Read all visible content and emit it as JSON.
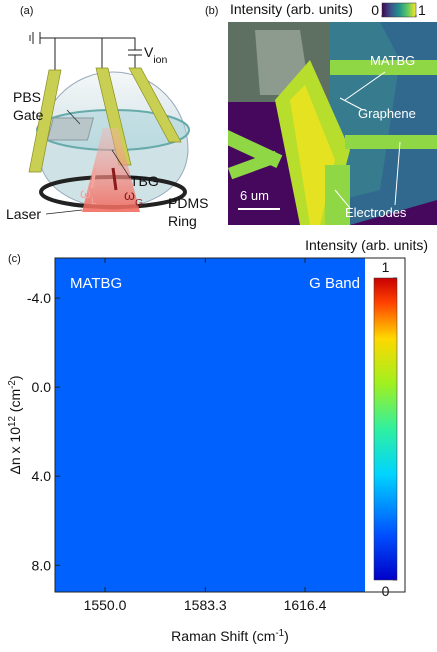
{
  "panel_a": {
    "label": "(a)",
    "voltage": {
      "symbol": "V",
      "subscript": "ion"
    },
    "pbs": "PBS",
    "gate": "Gate",
    "tbg": "TBG",
    "omega_l": {
      "symbol": "ω",
      "subscript": "L"
    },
    "omega_g": {
      "symbol": "ω",
      "subscript": "G"
    },
    "laser": "Laser",
    "pdms": "PDMS",
    "ring": "Ring"
  },
  "panel_b": {
    "label": "(b)",
    "colorbar_title": "Intensity (arb. units)",
    "colorbar_ticks": [
      0,
      1
    ],
    "matbg": "MATBG",
    "graphene": "Graphene",
    "electrodes": "Electrodes",
    "scale_bar": "6 um"
  },
  "chart_data": {
    "type": "contour",
    "panel_label": "(c)",
    "colorbar_title": "Intensity (arb. units)",
    "zlim": [
      0,
      1
    ],
    "zticks": [
      0,
      1
    ],
    "annotations": [
      "MATBG",
      "G Band"
    ],
    "xlabel_parts": [
      "Raman Shift (cm",
      "-1",
      ")"
    ],
    "ylabel_parts": [
      "Δn x 10",
      "12",
      " (cm",
      "-2",
      ")"
    ],
    "xlim": [
      1533.4,
      1649.6
    ],
    "xticks": [
      {
        "value": 1550,
        "label": "1550.0"
      },
      {
        "value": 1583.3,
        "label": "1583.3"
      },
      {
        "value": 1616.4,
        "label": "1616.4"
      }
    ],
    "ylim": [
      -5.8,
      9.2
    ],
    "yticks": [
      {
        "value": -4,
        "label": "-4.0"
      },
      {
        "value": 0,
        "label": "0.0"
      },
      {
        "value": 4,
        "label": "4.0"
      },
      {
        "value": 8,
        "label": "8.0"
      }
    ]
  }
}
